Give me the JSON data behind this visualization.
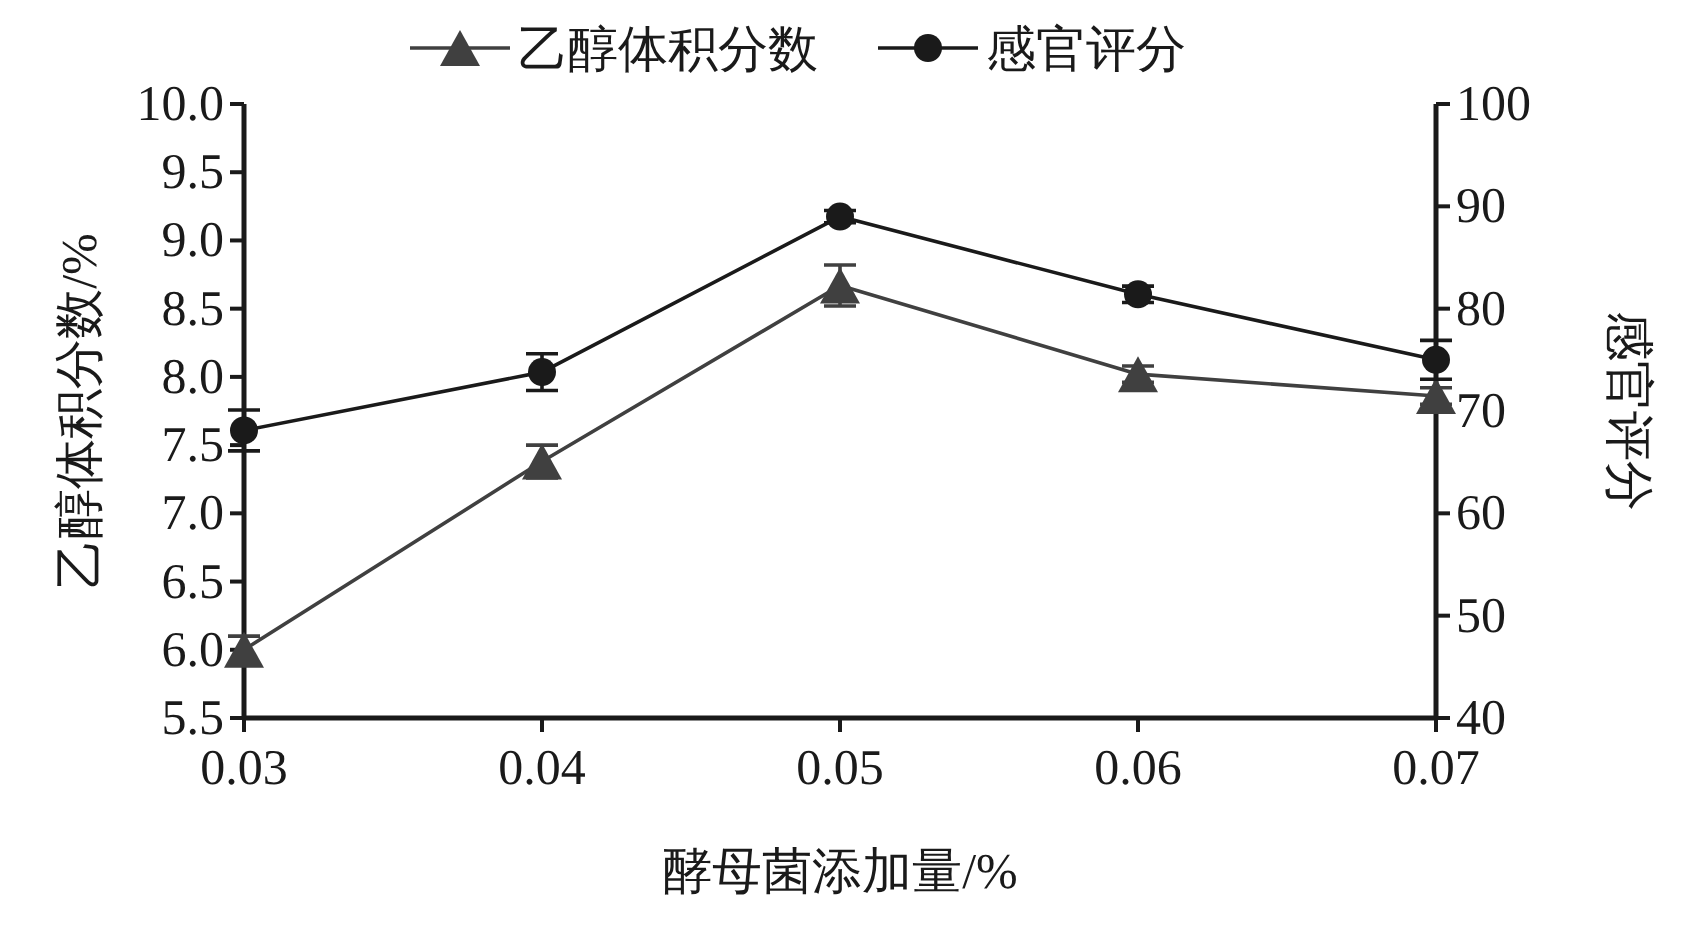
{
  "chart_data": {
    "type": "line",
    "xlabel": "酵母菌添加量/%",
    "ylabel": "乙醇体积分数/%",
    "y2label": "感官评分",
    "x": [
      0.03,
      0.04,
      0.05,
      0.06,
      0.07
    ],
    "series": [
      {
        "name": "乙醇体积分数",
        "color": "#404040",
        "marker": "triangle",
        "values": [
          6.0,
          7.38,
          8.67,
          8.02,
          7.86
        ],
        "errors": [
          0.1,
          0.12,
          0.15,
          0.06,
          0.06
        ]
      },
      {
        "name": "感官评分",
        "color": "#1a1a1a",
        "marker": "circle",
        "axis": "y2",
        "values": [
          68.1,
          73.8,
          89,
          81.4,
          75
        ],
        "errors": [
          2,
          1.8,
          0.6,
          0.8,
          1.9
        ]
      }
    ],
    "xlim": [
      0.03,
      0.07
    ],
    "xticks": [
      0.03,
      0.04,
      0.05,
      0.06,
      0.07
    ],
    "ylim": [
      5.5,
      10
    ],
    "yticks": [
      {
        "value": 5.5,
        "label": "5.5"
      },
      {
        "value": 6,
        "label": "6.0"
      },
      {
        "value": 6.5,
        "label": "6.5"
      },
      {
        "value": 7,
        "label": "7.0"
      },
      {
        "value": 7.5,
        "label": "7.5"
      },
      {
        "value": 8,
        "label": "8.0"
      },
      {
        "value": 8.5,
        "label": "8.5"
      },
      {
        "value": 9,
        "label": "9.0"
      },
      {
        "value": 9.5,
        "label": "9.5"
      },
      {
        "value": 10,
        "label": "10.0"
      }
    ],
    "y2lim": [
      40,
      100
    ],
    "y2ticks": [
      40,
      50,
      60,
      70,
      80,
      90,
      100
    ],
    "legend": "top",
    "grid": false,
    "line_style": "solid"
  }
}
